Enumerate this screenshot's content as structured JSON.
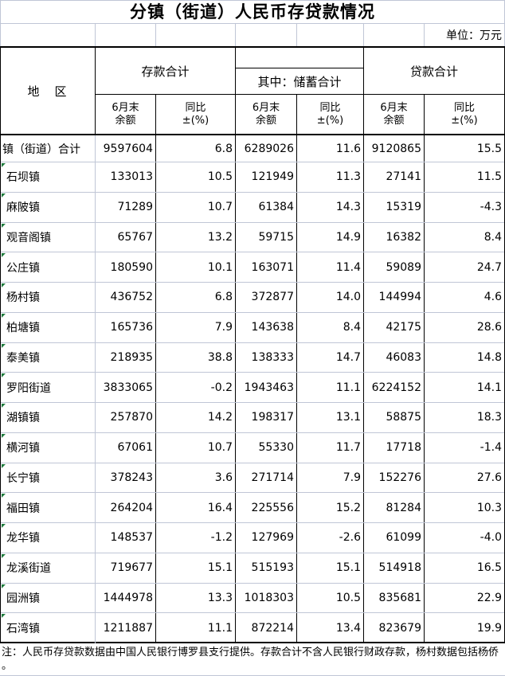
{
  "title": "分镇（街道）人民币存贷款情况",
  "unit_label": "单位：万元",
  "header": {
    "region": "地　区",
    "group_deposit": "存款合计",
    "group_savings": "其中：储蓄合计",
    "group_loan": "贷款合计",
    "subheaders": [
      "6月末\n余额",
      "同比\n±(%)",
      "6月末\n余额",
      "同比\n±(%)",
      "6月末\n余额",
      "同比\n±(%)"
    ]
  },
  "rows": [
    {
      "flag": false,
      "cells": [
        "镇（街道）合计",
        "9597604",
        "6.8",
        "6289026",
        "11.6",
        "9120865",
        "15.5"
      ]
    },
    {
      "flag": true,
      "cells": [
        "石坝镇",
        "133013",
        "10.5",
        "121949",
        "11.3",
        "27141",
        "11.5"
      ]
    },
    {
      "flag": true,
      "cells": [
        "麻陂镇",
        "71289",
        "10.7",
        "61384",
        "14.3",
        "15319",
        "-4.3"
      ]
    },
    {
      "flag": true,
      "cells": [
        "观音阁镇",
        "65767",
        "13.2",
        "59715",
        "14.9",
        "16382",
        "8.4"
      ]
    },
    {
      "flag": true,
      "cells": [
        "公庄镇",
        "180590",
        "10.1",
        "163071",
        "11.4",
        "59089",
        "24.7"
      ]
    },
    {
      "flag": true,
      "cells": [
        "杨村镇",
        "436752",
        "6.8",
        "372877",
        "14.0",
        "144994",
        "4.6"
      ]
    },
    {
      "flag": true,
      "cells": [
        "柏塘镇",
        "165736",
        "7.9",
        "143638",
        "8.4",
        "42175",
        "28.6"
      ]
    },
    {
      "flag": true,
      "cells": [
        "泰美镇",
        "218935",
        "38.8",
        "138333",
        "14.7",
        "46083",
        "14.8"
      ]
    },
    {
      "flag": true,
      "cells": [
        "罗阳街道",
        "3833065",
        "-0.2",
        "1943463",
        "11.1",
        "6224152",
        "14.1"
      ]
    },
    {
      "flag": true,
      "cells": [
        "湖镇镇",
        "257870",
        "14.2",
        "198317",
        "13.1",
        "58875",
        "18.3"
      ]
    },
    {
      "flag": true,
      "cells": [
        "横河镇",
        "67061",
        "10.7",
        "55330",
        "11.7",
        "17718",
        "-1.4"
      ]
    },
    {
      "flag": true,
      "cells": [
        "长宁镇",
        "378243",
        "3.6",
        "271714",
        "7.9",
        "152276",
        "27.6"
      ]
    },
    {
      "flag": true,
      "cells": [
        "福田镇",
        "264204",
        "16.4",
        "225556",
        "15.2",
        "81284",
        "10.3"
      ]
    },
    {
      "flag": true,
      "cells": [
        "龙华镇",
        "148537",
        "-1.2",
        "127969",
        "-2.6",
        "61099",
        "-4.0"
      ]
    },
    {
      "flag": true,
      "cells": [
        "龙溪街道",
        "719677",
        "15.1",
        "515193",
        "15.1",
        "514918",
        "16.5"
      ]
    },
    {
      "flag": true,
      "cells": [
        "园洲镇",
        "1444978",
        "13.3",
        "1018303",
        "10.5",
        "835681",
        "22.9"
      ]
    },
    {
      "flag": true,
      "cells": [
        "石湾镇",
        "1211887",
        "11.1",
        "872214",
        "13.4",
        "823679",
        "19.9"
      ]
    }
  ],
  "note_lines": [
    "注：人民币存贷款数据由中国人民银行博罗县支行提供。存款合计不含人民银行财政存款，杨村数据包括杨侨",
    "。"
  ],
  "colors": {
    "gridline": "#c0c6d6",
    "border": "#000000",
    "flag_triangle": "#1e7a3c",
    "text": "#000000"
  }
}
